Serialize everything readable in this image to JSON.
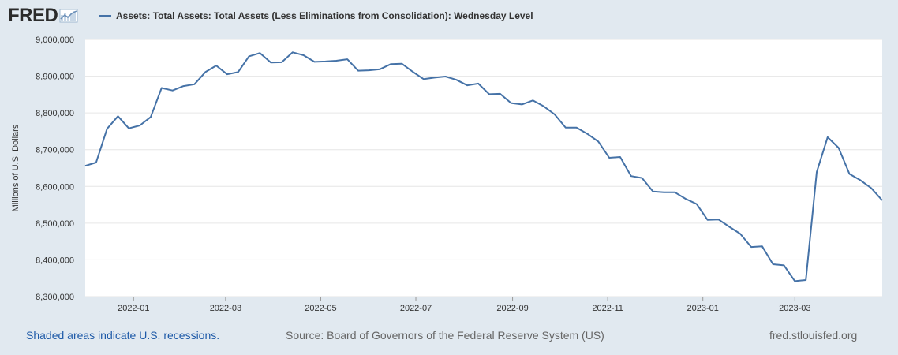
{
  "header": {
    "logo_text": "FRED",
    "legend_label": "Assets: Total Assets: Total Assets (Less Eliminations from Consolidation): Wednesday Level"
  },
  "footer": {
    "recession_note": "Shaded areas indicate U.S. recessions.",
    "source": "Source: Board of Governors of the Federal Reserve System (US)",
    "site": "fred.stlouisfed.org"
  },
  "colors": {
    "line": "#4572a7",
    "background": "#e1e9f0",
    "plot": "#ffffff",
    "grid": "#e6e6e6"
  },
  "icons": {
    "logo": "line-chart-icon"
  },
  "chart_data": {
    "type": "line",
    "title": "",
    "ylabel": "Millions of U.S. Dollars",
    "xlabel": "",
    "ylim": [
      8300000,
      9000000
    ],
    "yticks": [
      8300000,
      8400000,
      8500000,
      8600000,
      8700000,
      8800000,
      8900000,
      9000000
    ],
    "ytick_labels": [
      "8,300,000",
      "8,400,000",
      "8,500,000",
      "8,600,000",
      "8,700,000",
      "8,800,000",
      "8,900,000",
      "9,000,000"
    ],
    "xticks": [
      {
        "date": "2022-01-01",
        "label": "2022-01"
      },
      {
        "date": "2022-03-01",
        "label": "2022-03"
      },
      {
        "date": "2022-05-01",
        "label": "2022-05"
      },
      {
        "date": "2022-07-01",
        "label": "2022-07"
      },
      {
        "date": "2022-09-01",
        "label": "2022-09"
      },
      {
        "date": "2022-11-01",
        "label": "2022-11"
      },
      {
        "date": "2023-01-01",
        "label": "2023-01"
      },
      {
        "date": "2023-03-01",
        "label": "2023-03"
      }
    ],
    "xlim": [
      "2021-12-01",
      "2023-04-26"
    ],
    "grid": true,
    "series": [
      {
        "name": "Assets: Total Assets: Total Assets (Less Eliminations from Consolidation): Wednesday Level",
        "x": [
          "2021-12-01",
          "2021-12-08",
          "2021-12-15",
          "2021-12-22",
          "2021-12-29",
          "2022-01-05",
          "2022-01-12",
          "2022-01-19",
          "2022-01-26",
          "2022-02-02",
          "2022-02-09",
          "2022-02-16",
          "2022-02-23",
          "2022-03-02",
          "2022-03-09",
          "2022-03-16",
          "2022-03-23",
          "2022-03-30",
          "2022-04-06",
          "2022-04-13",
          "2022-04-20",
          "2022-04-27",
          "2022-05-04",
          "2022-05-11",
          "2022-05-18",
          "2022-05-25",
          "2022-06-01",
          "2022-06-08",
          "2022-06-15",
          "2022-06-22",
          "2022-06-29",
          "2022-07-06",
          "2022-07-13",
          "2022-07-20",
          "2022-07-27",
          "2022-08-03",
          "2022-08-10",
          "2022-08-17",
          "2022-08-24",
          "2022-08-31",
          "2022-09-07",
          "2022-09-14",
          "2022-09-21",
          "2022-09-28",
          "2022-10-05",
          "2022-10-12",
          "2022-10-19",
          "2022-10-26",
          "2022-11-02",
          "2022-11-09",
          "2022-11-16",
          "2022-11-23",
          "2022-11-30",
          "2022-12-07",
          "2022-12-14",
          "2022-12-21",
          "2022-12-28",
          "2023-01-04",
          "2023-01-11",
          "2023-01-18",
          "2023-01-25",
          "2023-02-01",
          "2023-02-08",
          "2023-02-15",
          "2023-02-22",
          "2023-03-01",
          "2023-03-08",
          "2023-03-15",
          "2023-03-22",
          "2023-03-29",
          "2023-04-05",
          "2023-04-12",
          "2023-04-19",
          "2023-04-26"
        ],
        "values": [
          8656000,
          8665000,
          8757000,
          8791000,
          8758000,
          8766000,
          8789000,
          8868000,
          8861000,
          8873000,
          8878000,
          8911000,
          8929000,
          8905000,
          8911000,
          8954000,
          8963000,
          8937000,
          8938000,
          8965000,
          8957000,
          8939000,
          8940000,
          8942000,
          8946000,
          8915000,
          8916000,
          8919000,
          8933000,
          8934000,
          8912000,
          8892000,
          8896000,
          8899000,
          8890000,
          8875000,
          8880000,
          8851000,
          8852000,
          8827000,
          8823000,
          8834000,
          8818000,
          8796000,
          8760000,
          8760000,
          8743000,
          8722000,
          8678000,
          8680000,
          8628000,
          8623000,
          8586000,
          8584000,
          8584000,
          8566000,
          8552000,
          8509000,
          8510000,
          8490000,
          8471000,
          8435000,
          8437000,
          8388000,
          8385000,
          8342000,
          8345000,
          8639000,
          8734000,
          8705000,
          8634000,
          8617000,
          8595000,
          8562000
        ]
      }
    ]
  }
}
